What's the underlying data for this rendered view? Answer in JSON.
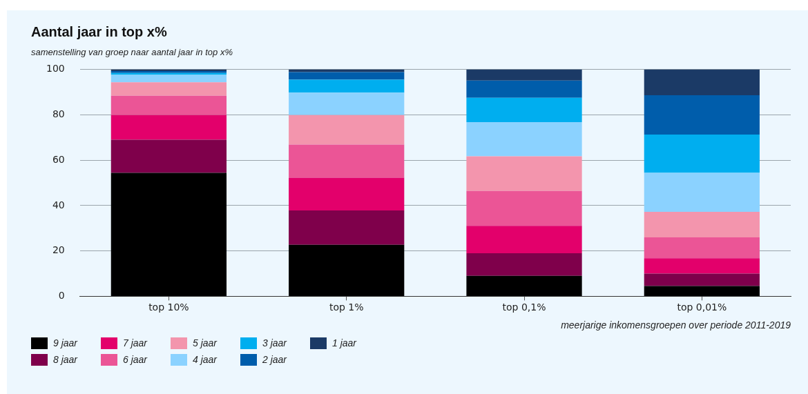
{
  "chart_data": {
    "type": "bar",
    "title": "Aantal jaar in top x%",
    "subtitle": "samenstelling van groep naar aantal jaar in top x%",
    "xlabel": "meerjarige inkomensgroepen over periode 2011-2019",
    "categories": [
      "top 10%",
      "top 1%",
      "top 0,1%",
      "top 0,01%"
    ],
    "stacked": true,
    "ylim": [
      0,
      100
    ],
    "yticks": [
      0,
      20,
      40,
      60,
      80,
      100
    ],
    "grid": "y",
    "legend": "bottom",
    "series": [
      {
        "name": "9 jaar",
        "color": "#000000",
        "values": [
          54.4,
          22.7,
          9.0,
          4.5
        ]
      },
      {
        "name": "8 jaar",
        "color": "#7f004b",
        "values": [
          14.6,
          15.1,
          10.0,
          5.5
        ]
      },
      {
        "name": "7 jaar",
        "color": "#e3006b",
        "values": [
          10.9,
          14.5,
          12.1,
          6.8
        ]
      },
      {
        "name": "6 jaar",
        "color": "#eb5596",
        "values": [
          8.5,
          14.6,
          15.3,
          9.2
        ]
      },
      {
        "name": "5 jaar",
        "color": "#f395ad",
        "values": [
          5.9,
          13.0,
          15.3,
          11.2
        ]
      },
      {
        "name": "4 jaar",
        "color": "#8bd2ff",
        "values": [
          3.3,
          9.9,
          15.1,
          17.2
        ]
      },
      {
        "name": "3 jaar",
        "color": "#00aeef",
        "values": [
          0.8,
          5.7,
          10.7,
          16.9
        ]
      },
      {
        "name": "2 jaar",
        "color": "#005dab",
        "values": [
          0.9,
          3.3,
          7.6,
          17.3
        ]
      },
      {
        "name": "1 jaar",
        "color": "#1b3a66",
        "values": [
          0.7,
          1.2,
          4.9,
          11.4
        ]
      }
    ]
  }
}
